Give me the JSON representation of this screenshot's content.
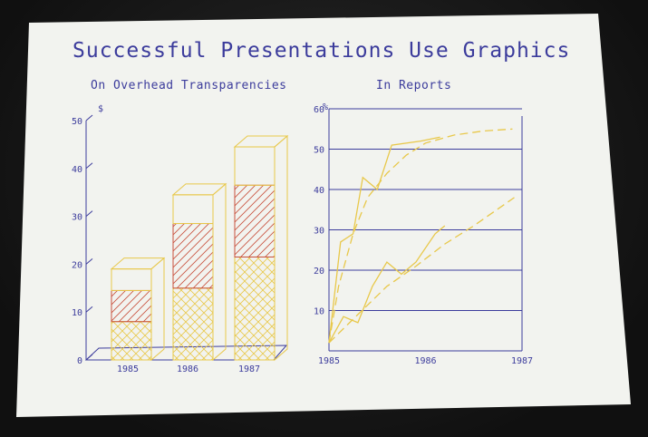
{
  "page": {
    "title": "Successful Presentations Use Graphics"
  },
  "colors": {
    "ink": "#3c3c9c",
    "yellow": "#e8c84a",
    "red": "#c8503c",
    "paper": "#f2f3ef"
  },
  "chart_data": [
    {
      "type": "bar",
      "title": "On Overhead Transparencies",
      "ylabel": "$",
      "categories": [
        "1985",
        "1986",
        "1987"
      ],
      "ylim": [
        0,
        50
      ],
      "yticks": [
        0,
        10,
        20,
        30,
        40,
        50
      ],
      "stacked": true,
      "series": [
        {
          "values": [
            8,
            15,
            21.5
          ]
        },
        {
          "values": [
            6.5,
            13.5,
            15
          ]
        },
        {
          "values": [
            4.5,
            6,
            8
          ]
        }
      ],
      "totals": [
        19,
        34.5,
        44.5
      ]
    },
    {
      "type": "line",
      "title": "In Reports",
      "ylabel": "%",
      "xlim": [
        1985,
        1987
      ],
      "xticks": [
        1985,
        1986,
        1987
      ],
      "ylim": [
        0,
        60
      ],
      "yticks": [
        10,
        20,
        30,
        40,
        50,
        60
      ],
      "grid": true,
      "series": [
        {
          "style": "solid",
          "points": [
            [
              1985,
              2
            ],
            [
              1985.12,
              27
            ],
            [
              1985.25,
              29
            ],
            [
              1985.35,
              43
            ],
            [
              1985.5,
              40
            ],
            [
              1985.65,
              51
            ],
            [
              1985.95,
              52
            ],
            [
              1986.15,
              53
            ]
          ]
        },
        {
          "style": "dashed",
          "points": [
            [
              1985,
              2
            ],
            [
              1985.1,
              16
            ],
            [
              1985.25,
              29
            ],
            [
              1985.4,
              38
            ],
            [
              1985.6,
              44
            ],
            [
              1985.8,
              48.5
            ],
            [
              1986,
              51.5
            ],
            [
              1986.3,
              53.5
            ],
            [
              1986.6,
              54.5
            ],
            [
              1986.9,
              55
            ]
          ]
        },
        {
          "style": "solid",
          "points": [
            [
              1985,
              2
            ],
            [
              1985.15,
              8.5
            ],
            [
              1985.3,
              7
            ],
            [
              1985.45,
              16
            ],
            [
              1985.6,
              22
            ],
            [
              1985.75,
              19
            ],
            [
              1985.9,
              22
            ],
            [
              1986.1,
              29
            ],
            [
              1986.2,
              31
            ]
          ]
        },
        {
          "style": "dashed",
          "points": [
            [
              1985,
              2
            ],
            [
              1985.3,
              9
            ],
            [
              1985.6,
              16
            ],
            [
              1985.9,
              21
            ],
            [
              1986.2,
              26.5
            ],
            [
              1986.5,
              31
            ],
            [
              1986.8,
              36
            ],
            [
              1986.92,
              38
            ]
          ]
        }
      ]
    }
  ]
}
